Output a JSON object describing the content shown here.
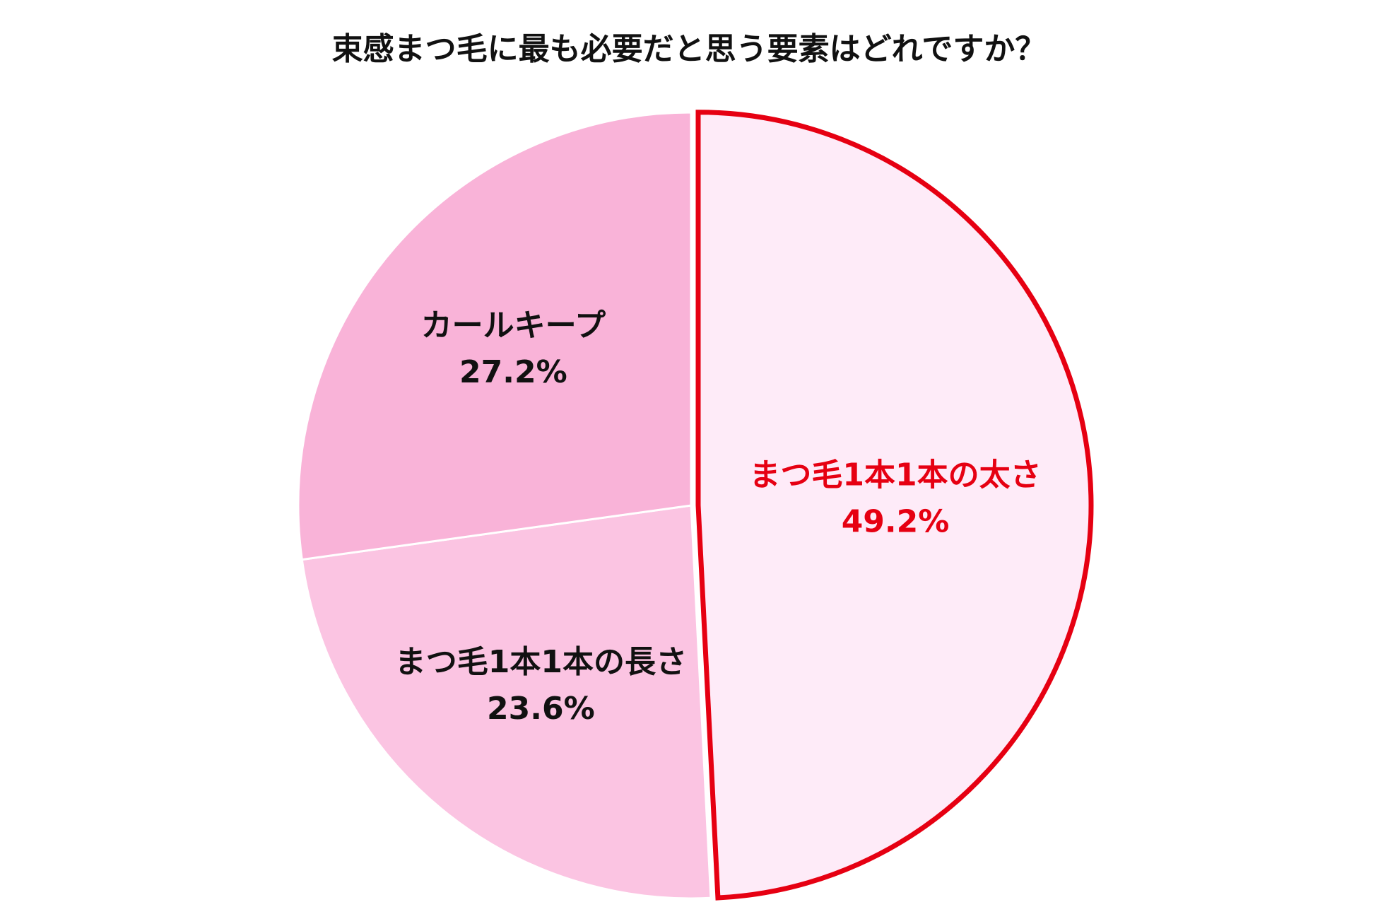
{
  "chart_data": {
    "type": "pie",
    "title": "束感まつ毛に最も必要だと思う要素はどれですか？",
    "categories": [
      "まつ毛1本1本の太さ",
      "まつ毛1本1本の長さ",
      "カールキープ"
    ],
    "values": [
      49.2,
      23.6,
      27.2
    ],
    "value_labels": [
      "49.2%",
      "23.6%",
      "27.2%"
    ],
    "colors": [
      "#feebf8",
      "#fbc4e2",
      "#f9b3d8"
    ],
    "highlight_index": 0,
    "highlight_color": "#e60012"
  }
}
